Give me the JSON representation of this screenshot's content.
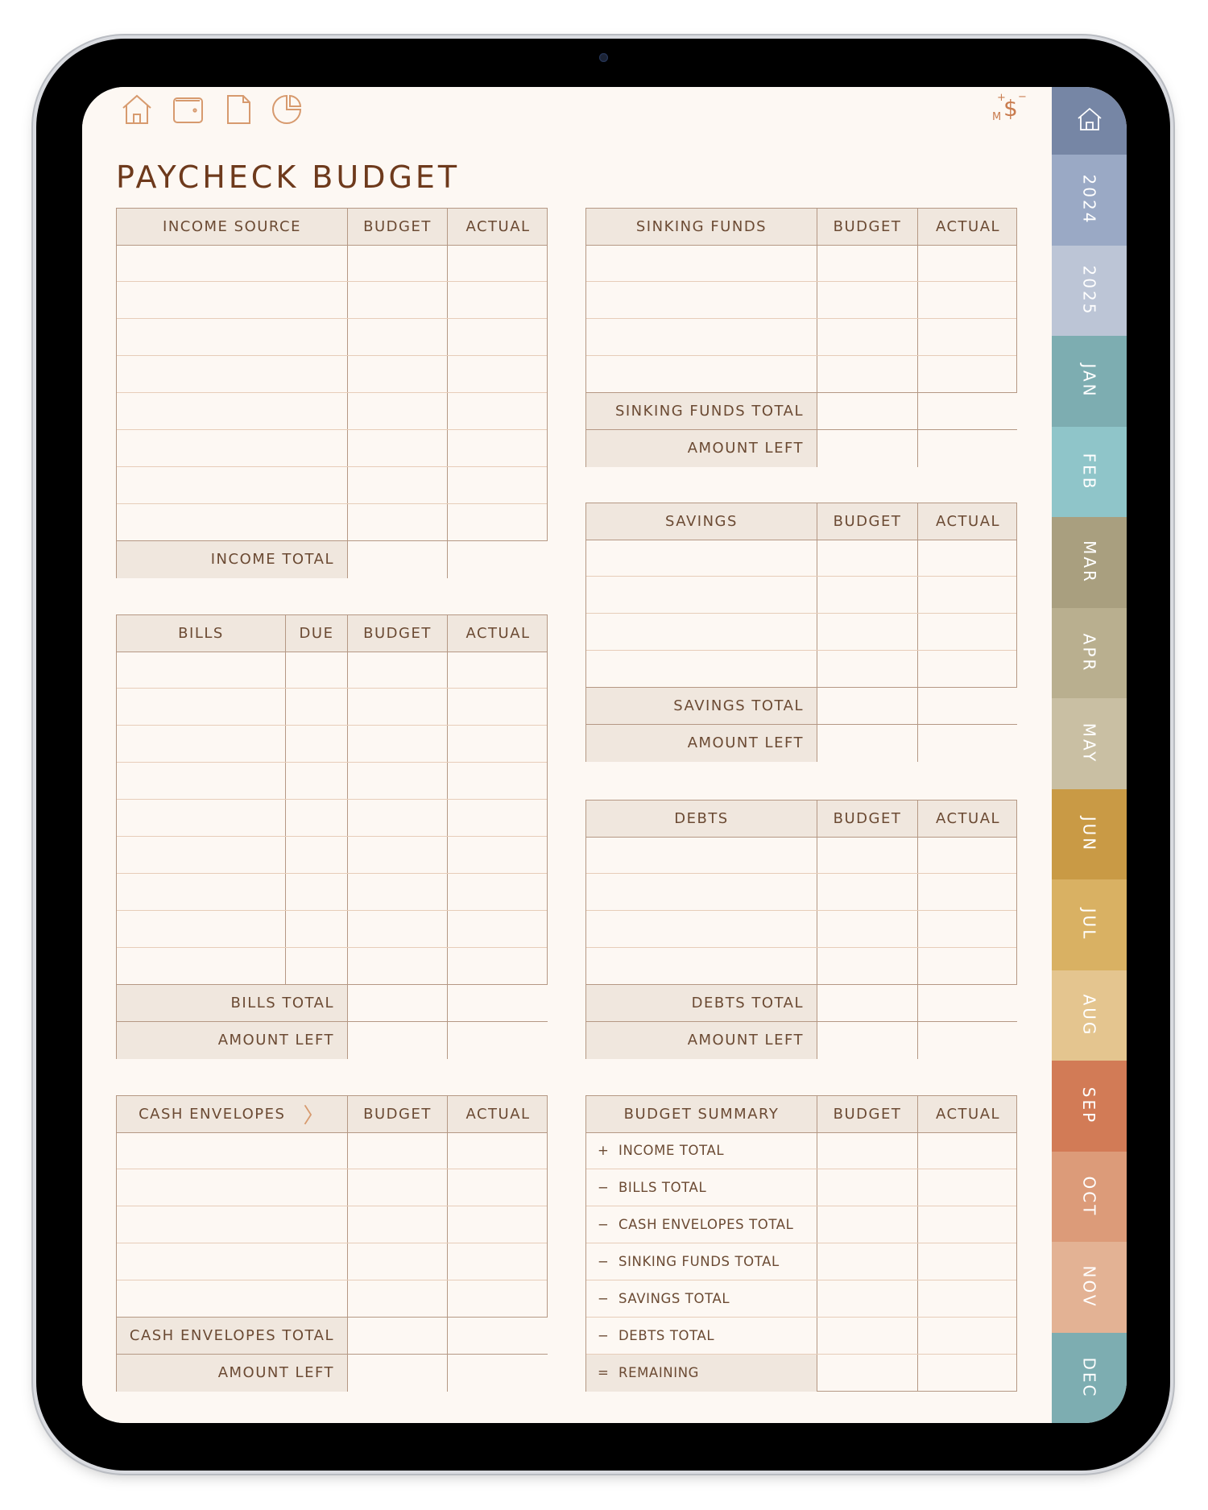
{
  "title": "PAYCHECK BUDGET",
  "toolbar": {
    "icons": [
      "home-icon",
      "wallet-icon",
      "document-icon",
      "pie-chart-icon"
    ],
    "ms_icon": {
      "letter": "M",
      "symbol": "$",
      "plus": "+",
      "minus": "−"
    }
  },
  "colors": {
    "accent": "#d79a6e",
    "text": "#6b4a33",
    "title": "#6e3a1c",
    "border": "#b59884",
    "header_bg": "#f0e7de",
    "page_bg": "#fdf8f3"
  },
  "tables": {
    "income": {
      "columns": [
        "INCOME SOURCE",
        "BUDGET",
        "ACTUAL"
      ],
      "blank_rows": 8,
      "totals": [
        "INCOME TOTAL"
      ]
    },
    "bills": {
      "columns": [
        "BILLS",
        "DUE",
        "BUDGET",
        "ACTUAL"
      ],
      "blank_rows": 9,
      "totals": [
        "BILLS TOTAL",
        "AMOUNT LEFT"
      ]
    },
    "cash": {
      "columns": [
        "CASH ENVELOPES",
        "BUDGET",
        "ACTUAL"
      ],
      "blank_rows": 5,
      "totals": [
        "CASH ENVELOPES TOTAL",
        "AMOUNT LEFT"
      ]
    },
    "sinking": {
      "columns": [
        "SINKING FUNDS",
        "BUDGET",
        "ACTUAL"
      ],
      "blank_rows": 4,
      "totals": [
        "SINKING FUNDS TOTAL",
        "AMOUNT LEFT"
      ]
    },
    "savings": {
      "columns": [
        "SAVINGS",
        "BUDGET",
        "ACTUAL"
      ],
      "blank_rows": 4,
      "totals": [
        "SAVINGS TOTAL",
        "AMOUNT LEFT"
      ]
    },
    "debts": {
      "columns": [
        "DEBTS",
        "BUDGET",
        "ACTUAL"
      ],
      "blank_rows": 4,
      "totals": [
        "DEBTS TOTAL",
        "AMOUNT LEFT"
      ]
    },
    "summary": {
      "columns": [
        "BUDGET SUMMARY",
        "BUDGET",
        "ACTUAL"
      ],
      "rows": [
        {
          "sign": "+",
          "label": "INCOME TOTAL"
        },
        {
          "sign": "−",
          "label": "BILLS TOTAL"
        },
        {
          "sign": "−",
          "label": "CASH ENVELOPES TOTAL"
        },
        {
          "sign": "−",
          "label": "SINKING FUNDS TOTAL"
        },
        {
          "sign": "−",
          "label": "SAVINGS TOTAL"
        },
        {
          "sign": "−",
          "label": "DEBTS TOTAL"
        },
        {
          "sign": "=",
          "label": "REMAINING"
        }
      ]
    }
  },
  "tabs": [
    {
      "label": "",
      "icon": "home-icon",
      "color": "#7686a5"
    },
    {
      "label": "2024",
      "color": "#9aa9c5"
    },
    {
      "label": "2025",
      "color": "#bcc5d6"
    },
    {
      "label": "JAN",
      "color": "#7dadb1"
    },
    {
      "label": "FEB",
      "color": "#8fc5c9"
    },
    {
      "label": "MAR",
      "color": "#a99f7f"
    },
    {
      "label": "APR",
      "color": "#b9af8f"
    },
    {
      "label": "MAY",
      "color": "#c9bfa3"
    },
    {
      "label": "JUN",
      "color": "#c99a45"
    },
    {
      "label": "JUL",
      "color": "#d9b163"
    },
    {
      "label": "AUG",
      "color": "#e4c58f"
    },
    {
      "label": "SEP",
      "color": "#d27b56"
    },
    {
      "label": "OCT",
      "color": "#dc9b79"
    },
    {
      "label": "NOV",
      "color": "#e3b294"
    },
    {
      "label": "DEC",
      "color": "#7dadb1"
    }
  ]
}
